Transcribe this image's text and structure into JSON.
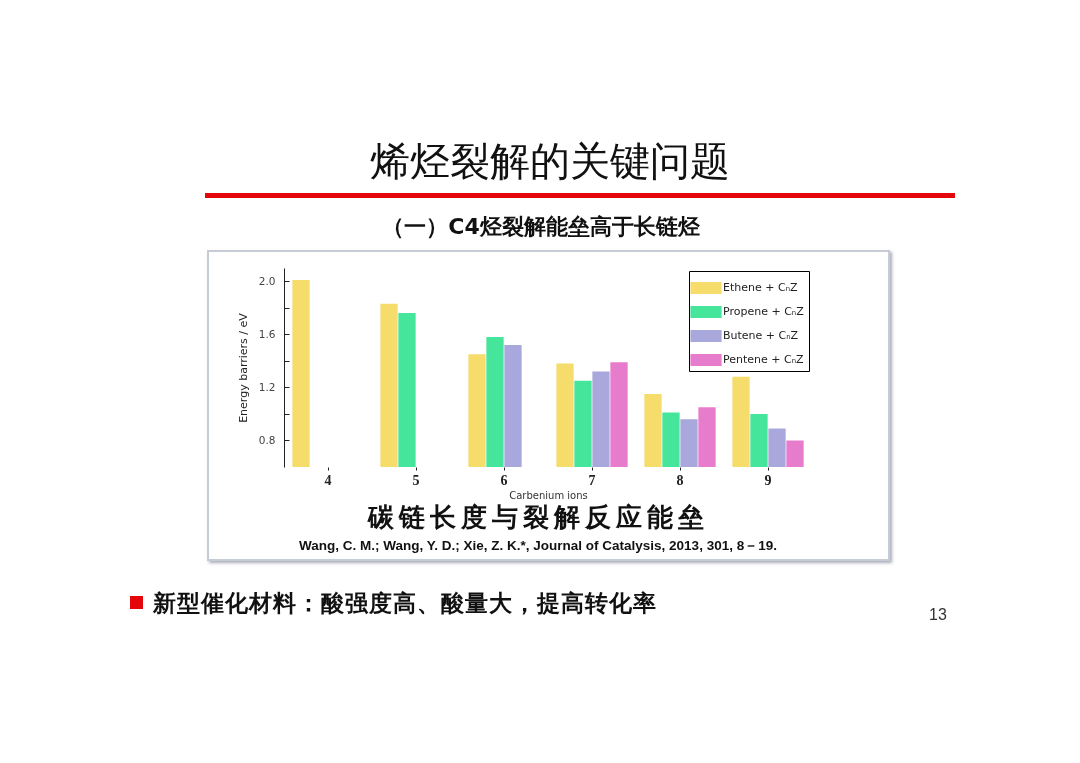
{
  "chart_data": {
    "type": "bar",
    "title": "烯烃裂解的关键问题",
    "subtitle": "（一）C4烃裂解能垒高于长链烃",
    "xlabel": "Carbenium ions",
    "ylabel": "Energy barriers / eV",
    "categories": [
      "4",
      "5",
      "6",
      "7",
      "8",
      "9"
    ],
    "series": [
      {
        "name": "Ethene + CₙZ",
        "color": "#f6dc6a",
        "values": [
          2.01,
          1.83,
          1.45,
          1.38,
          1.15,
          1.28
        ]
      },
      {
        "name": "Propene + CₙZ",
        "color": "#45e59c",
        "values": [
          null,
          1.76,
          1.58,
          1.25,
          1.01,
          1.0
        ]
      },
      {
        "name": "Butene + CₙZ",
        "color": "#a8a8dc",
        "values": [
          null,
          null,
          1.52,
          1.32,
          0.96,
          0.89
        ]
      },
      {
        "name": "Pentene + CₙZ",
        "color": "#e87ccc",
        "values": [
          null,
          null,
          null,
          1.39,
          1.05,
          0.8
        ]
      }
    ],
    "ylim": [
      0.6,
      2.1
    ],
    "yticks": [
      0.8,
      {
        "value": 1,
        "label": null
      },
      1.2,
      {
        "value": 1.4,
        "label": null
      },
      1.6,
      {
        "value": 1.8,
        "label": null
      },
      {
        "value": 2,
        "label": "2.0"
      }
    ],
    "legend": "top right",
    "annotations": [
      "碳链长度与裂解反应能垒",
      "Wang, C. M.; Wang, Y. D.; Xie, Z. K.*, Journal of Catalysis, 2013, 301, 8－19.",
      "新型催化材料：酸强度高、酸量大，提高转化率",
      "13"
    ]
  }
}
